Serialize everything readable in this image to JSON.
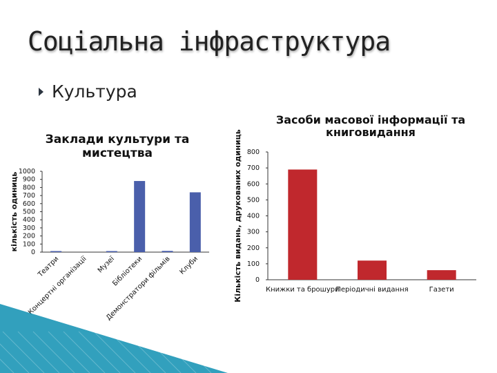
{
  "slide": {
    "title": "Соціальна інфраструктура",
    "bullet": "Культура"
  },
  "colors": {
    "left_bar": "#4a5fab",
    "right_bar": "#c0282d",
    "axis": "#333333",
    "decor": "#0e8fb2"
  },
  "chart_data": [
    {
      "type": "bar",
      "title": "Заклади культури та мистецтва",
      "ylabel": "кількість одиниць",
      "categories": [
        "Театри",
        "Концертні організації",
        "Музеї",
        "Бібліотеки",
        "Демонстратори фільмів",
        "Клуби"
      ],
      "values": [
        5,
        0,
        7,
        880,
        15,
        740
      ],
      "ylim": [
        0,
        1000
      ],
      "yticks": [
        "0",
        "100",
        "200",
        "300",
        "400",
        "500",
        "600",
        "700",
        "800",
        "900",
        "1000"
      ],
      "color": "#4a5fab",
      "grid": false
    },
    {
      "type": "bar",
      "title": "Засоби масової інформації та книговидання",
      "ylabel": "Кількість видань, друкованих одиниць",
      "categories": [
        "Книжки та брошури",
        "Періодичні видання",
        "Газети"
      ],
      "values": [
        690,
        120,
        60
      ],
      "ylim": [
        0,
        800
      ],
      "yticks": [
        "0",
        "100",
        "200",
        "300",
        "400",
        "500",
        "600",
        "700",
        "800"
      ],
      "color": "#c0282d",
      "grid": false
    }
  ]
}
